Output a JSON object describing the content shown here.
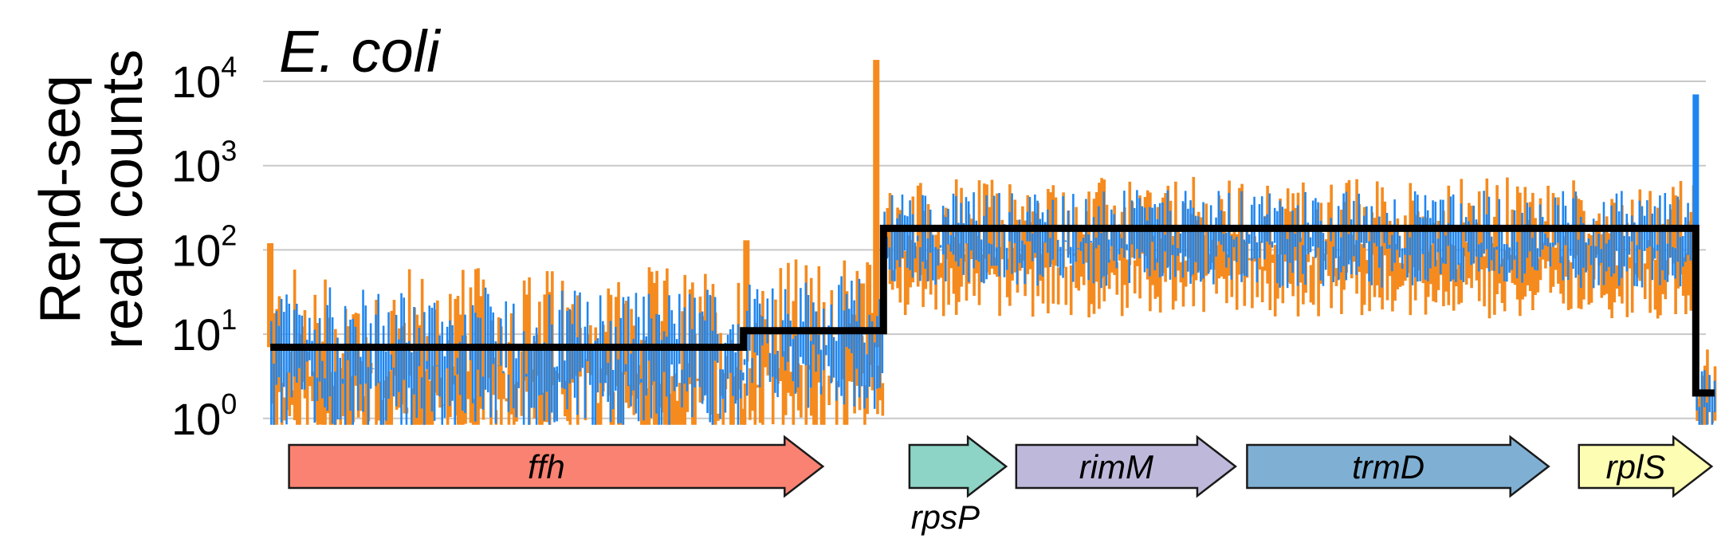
{
  "chart_data": {
    "type": "bar",
    "title": "",
    "annotation": "E. coli",
    "ylabel_line1": "Rend-seq",
    "ylabel_line2": "read counts",
    "yscale": "log",
    "ylim": [
      0.8,
      25000
    ],
    "grid": true,
    "y_ticks": [
      {
        "base": "10",
        "exp": "0",
        "value": 1
      },
      {
        "base": "10",
        "exp": "1",
        "value": 10
      },
      {
        "base": "10",
        "exp": "2",
        "value": 100
      },
      {
        "base": "10",
        "exp": "3",
        "value": 1000
      },
      {
        "base": "10",
        "exp": "4",
        "value": 10000
      }
    ],
    "xlim": [
      0,
      1000
    ],
    "series": [
      {
        "color": "#f58b1f"
      },
      {
        "color": "#1f86f0"
      }
    ],
    "step_line": {
      "color": "#000000",
      "points": [
        [
          5,
          7
        ],
        [
          333,
          7
        ],
        [
          333,
          11
        ],
        [
          430,
          11
        ],
        [
          430,
          180
        ],
        [
          993,
          180
        ],
        [
          993,
          2
        ],
        [
          1006,
          2
        ]
      ]
    },
    "segments": [
      {
        "from": 5,
        "to": 333,
        "level": 7,
        "spread": 0.55,
        "orange_peaks": [
          [
            5,
            120
          ],
          [
            335,
            130
          ],
          [
            425,
            18000
          ]
        ]
      },
      {
        "from": 333,
        "to": 430,
        "level": 11,
        "spread": 0.5,
        "orange_peaks": [
          [
            415,
            40
          ]
        ]
      },
      {
        "from": 430,
        "to": 993,
        "level": 180,
        "spread": 0.35,
        "orange_peaks": [],
        "blue_peaks": [
          [
            993,
            7000
          ]
        ]
      },
      {
        "from": 993,
        "to": 1006,
        "level": 2,
        "spread": 0.3,
        "orange_peaks": [],
        "blue_peaks": []
      }
    ]
  },
  "genes": [
    {
      "label": "ffh",
      "from": 18,
      "to": 388,
      "color": "#f98272",
      "label_below": false
    },
    {
      "label": "rpsP",
      "from": 448,
      "to": 515,
      "color": "#8dd3c6",
      "label_below": true
    },
    {
      "label": "rimM",
      "from": 522,
      "to": 674,
      "color": "#beb9da",
      "label_below": false
    },
    {
      "label": "trmD",
      "from": 682,
      "to": 891,
      "color": "#7fb0d4",
      "label_below": false
    },
    {
      "label": "rplS",
      "from": 912,
      "to": 1004,
      "color": "#fdfdb4",
      "label_below": false
    }
  ]
}
